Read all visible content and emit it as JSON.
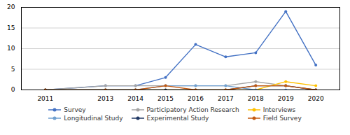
{
  "chart_data": {
    "type": "line",
    "x": [
      2011,
      2013,
      2014,
      2015,
      2016,
      2017,
      2018,
      2019,
      2020
    ],
    "xlim": [
      2010.2,
      2020.8
    ],
    "xticks": [
      2011,
      2013,
      2014,
      2015,
      2016,
      2017,
      2018,
      2019,
      2020
    ],
    "ylim": [
      0,
      20
    ],
    "yticks": [
      0,
      5,
      10,
      15,
      20
    ],
    "grid": true,
    "legend": "bottom",
    "series": [
      {
        "name": "Survey",
        "color": "#4472C4",
        "marker": "circle",
        "line_style": "solid",
        "values": [
          0,
          1,
          1,
          3,
          11,
          8,
          9,
          19,
          6
        ]
      },
      {
        "name": "Participatory Action Research",
        "color": "#A5A5A5",
        "marker": "circle",
        "line_style": "solid",
        "values": [
          0,
          1,
          1,
          1,
          1,
          1,
          2,
          1,
          0
        ]
      },
      {
        "name": "Interviews",
        "color": "#FFC000",
        "marker": "circle",
        "line_style": "solid",
        "values": [
          0,
          0,
          0,
          0,
          0,
          0,
          0,
          2,
          1
        ]
      },
      {
        "name": "Longitudinal Study",
        "color": "#70A0D0",
        "marker": "circle",
        "line_style": "solid",
        "values": [
          0,
          0,
          0,
          1,
          1,
          1,
          0,
          0,
          0
        ]
      },
      {
        "name": "Experimental Study",
        "color": "#203864",
        "marker": "circle",
        "line_style": "solid",
        "values": [
          0,
          0,
          0,
          0,
          0,
          0,
          1,
          1,
          0
        ]
      },
      {
        "name": "Field Survey",
        "color": "#C55A11",
        "marker": "circle",
        "line_style": "solid",
        "values": [
          0,
          0,
          0,
          1,
          0,
          0,
          1,
          1,
          0
        ]
      }
    ]
  }
}
